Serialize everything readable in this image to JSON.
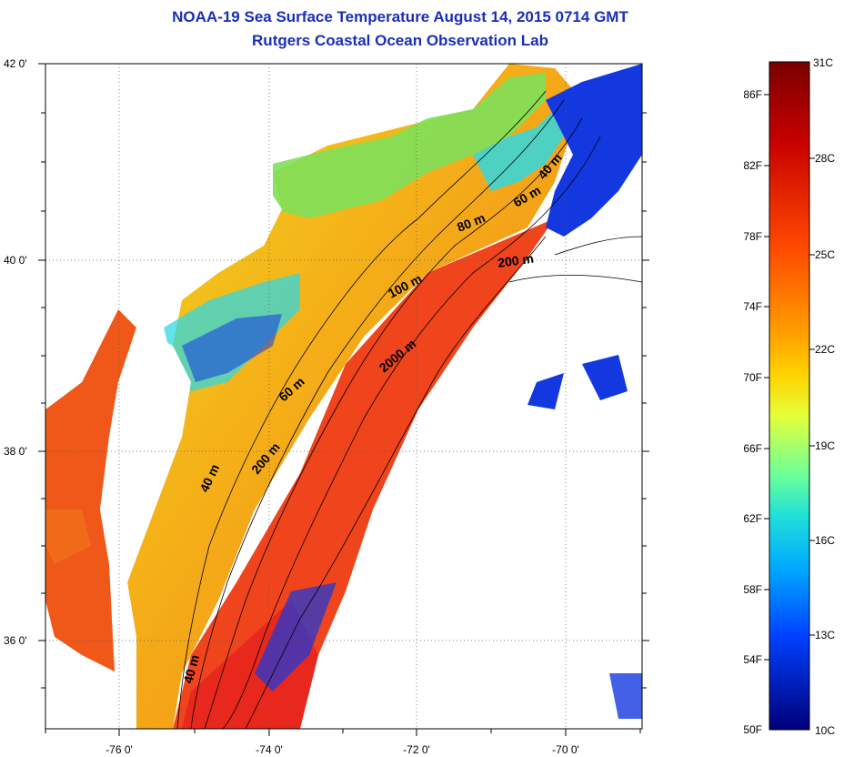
{
  "title": "NOAA-19 Sea Surface Temperature August 14, 2015 0714 GMT",
  "subtitle": "Rutgers Coastal Ocean Observation Lab",
  "axes": {
    "lon_labels": [
      "-76 0'",
      "-74 0'",
      "-72 0'",
      "-70 0'"
    ],
    "lat_labels": [
      "42 0'",
      "40 0'",
      "38 0'",
      "36 0'"
    ]
  },
  "contour_labels": [
    "40 m",
    "60 m",
    "80 m",
    "100 m",
    "200 m",
    "2000 m",
    "60 m",
    "200 m",
    "40 m",
    "40 m"
  ],
  "colorbar": {
    "fahrenheit_labels": [
      "86F",
      "82F",
      "78F",
      "74F",
      "70F",
      "66F",
      "62F",
      "58F",
      "54F",
      "50F"
    ],
    "celsius_labels": [
      "31C",
      "28C",
      "25C",
      "22C",
      "19C",
      "16C",
      "13C",
      "10C"
    ],
    "colors": [
      "#7a0000",
      "#c80000",
      "#ff3a00",
      "#ff8a00",
      "#ffd400",
      "#d8ff3a",
      "#7dff8a",
      "#1fe0d0",
      "#00a8ff",
      "#0050ff",
      "#0010c8",
      "#00007a"
    ]
  },
  "map_colors": {
    "land": "#ffffff",
    "warm_sea": "#f0401a",
    "shelf_warm": "#f5a018",
    "shelf_yellow": "#ecd820",
    "cool_green": "#7ee05a",
    "cool_cyan": "#30d8e0",
    "cold_blue": "#1438e0"
  }
}
